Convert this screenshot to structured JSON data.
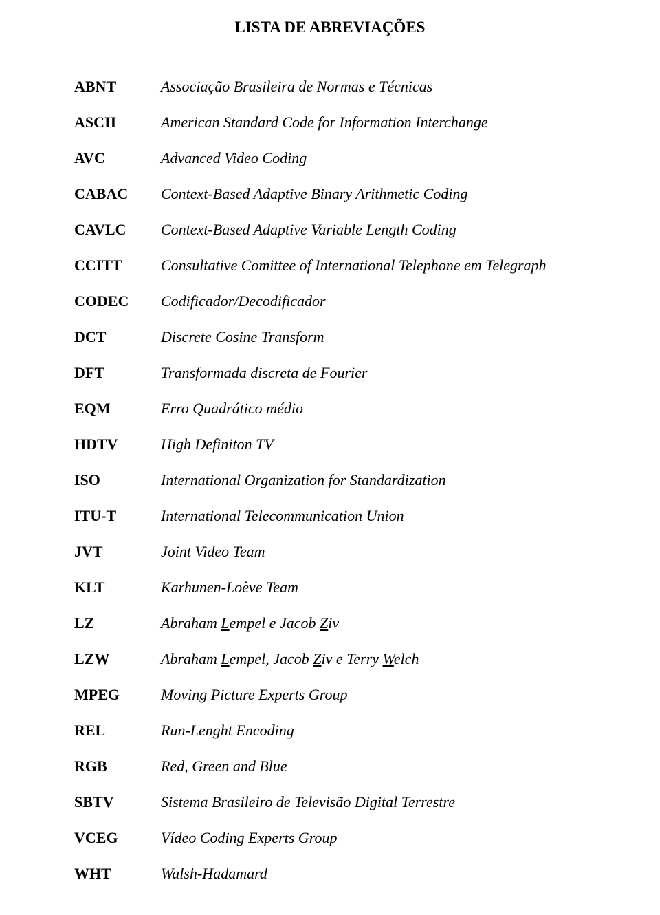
{
  "title": "LISTA DE ABREVIAÇÕES",
  "entries": [
    {
      "abbr": "ABNT",
      "def": "Associação Brasileira de Normas e Técnicas",
      "underline": []
    },
    {
      "abbr": "ASCII",
      "def": "American Standard Code for Information Interchange",
      "underline": []
    },
    {
      "abbr": "AVC",
      "def": "Advanced Video Coding",
      "underline": []
    },
    {
      "abbr": "CABAC",
      "def": "Context-Based Adaptive Binary Arithmetic Coding",
      "underline": []
    },
    {
      "abbr": "CAVLC",
      "def": "Context-Based Adaptive Variable Length Coding",
      "underline": []
    },
    {
      "abbr": "CCITT",
      "def": "Consultative Comittee of International Telephone em Telegraph",
      "underline": []
    },
    {
      "abbr": "CODEC",
      "def": "Codificador/Decodificador",
      "underline": []
    },
    {
      "abbr": "DCT",
      "def": "Discrete Cosine Transform",
      "underline": []
    },
    {
      "abbr": "DFT",
      "def": "Transformada discreta de Fourier",
      "underline": []
    },
    {
      "abbr": "EQM",
      "def": "Erro Quadrático médio",
      "underline": []
    },
    {
      "abbr": "HDTV",
      "def": "High Definiton TV",
      "underline": []
    },
    {
      "abbr": "ISO",
      "def": "International Organization for Standardization",
      "underline": []
    },
    {
      "abbr": "ITU-T",
      "def": "International Telecommunication Union",
      "underline": []
    },
    {
      "abbr": "JVT",
      "def": "Joint Video Team",
      "underline": []
    },
    {
      "abbr": "KLT",
      "def": "Karhunen-Loève Team",
      "underline": []
    },
    {
      "abbr": "LZ",
      "def": "Abraham Lempel e Jacob Ziv",
      "underline": [
        "L",
        "Z"
      ]
    },
    {
      "abbr": "LZW",
      "def": "Abraham Lempel, Jacob Ziv e Terry Welch",
      "underline": [
        "L",
        "Z",
        "W"
      ]
    },
    {
      "abbr": "MPEG",
      "def": "Moving Picture Experts Group",
      "underline": []
    },
    {
      "abbr": "REL",
      "def": "Run-Lenght Encoding",
      "underline": []
    },
    {
      "abbr": "RGB",
      "def": "Red, Green and Blue",
      "underline": []
    },
    {
      "abbr": "SBTV",
      "def": "Sistema Brasileiro de Televisão Digital Terrestre",
      "underline": []
    },
    {
      "abbr": "VCEG",
      "def": "Vídeo Coding Experts Group",
      "underline": []
    },
    {
      "abbr": "WHT",
      "def": "Walsh-Hadamard",
      "underline": []
    }
  ]
}
